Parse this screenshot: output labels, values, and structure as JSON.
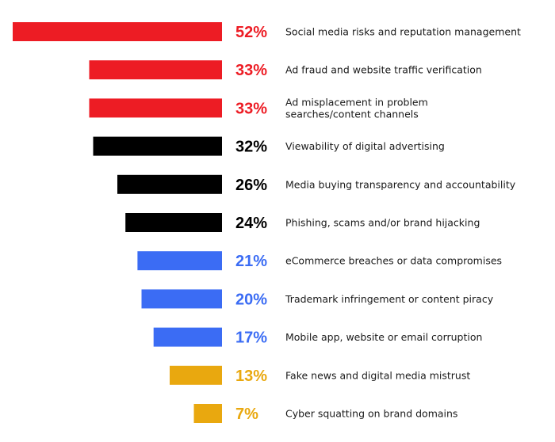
{
  "chart_data": {
    "type": "bar",
    "orientation": "horizontal",
    "value_suffix": "%",
    "xlim": [
      0,
      52
    ],
    "grid": false,
    "categories": [
      "Social media risks and reputation management",
      "Ad fraud and website traffic verification",
      "Ad misplacement in problem searches/content channels",
      "Viewability of digital advertising",
      "Media buying transparency and accountability",
      "Phishing, scams and/or brand hijacking",
      "eCommerce breaches or data compromises",
      "Trademark infringement or content piracy",
      "Mobile app, website or email corruption",
      "Fake news and digital media mistrust",
      "Cyber squatting on brand domains"
    ],
    "label_lines": [
      [
        "Social media risks and reputation management"
      ],
      [
        "Ad fraud and website traffic verification"
      ],
      [
        "Ad misplacement in problem",
        "searches/content channels"
      ],
      [
        "Viewability of digital advertising"
      ],
      [
        "Media buying transparency and accountability"
      ],
      [
        "Phishing, scams and/or brand hijacking"
      ],
      [
        "eCommerce breaches or data compromises"
      ],
      [
        "Trademark infringement or content piracy"
      ],
      [
        "Mobile app, website or email corruption"
      ],
      [
        "Fake news and digital media mistrust"
      ],
      [
        "Cyber squatting on brand domains"
      ]
    ],
    "values": [
      52,
      33,
      33,
      32,
      26,
      24,
      21,
      20,
      17,
      13,
      7
    ],
    "value_labels": [
      "52%",
      "33%",
      "33%",
      "32%",
      "26%",
      "24%",
      "21%",
      "20%",
      "17%",
      "13%",
      "7%"
    ],
    "colors": [
      "#ed1c24",
      "#ed1c24",
      "#ed1c24",
      "#000000",
      "#000000",
      "#000000",
      "#3b6cf4",
      "#3b6cf4",
      "#3b6cf4",
      "#e9a80f",
      "#e9a80f"
    ],
    "value_label_colors": [
      "#ed1c24",
      "#ed1c24",
      "#ed1c24",
      "#000000",
      "#000000",
      "#000000",
      "#3b6cf4",
      "#3b6cf4",
      "#3b6cf4",
      "#e9a80f",
      "#e9a80f"
    ]
  }
}
